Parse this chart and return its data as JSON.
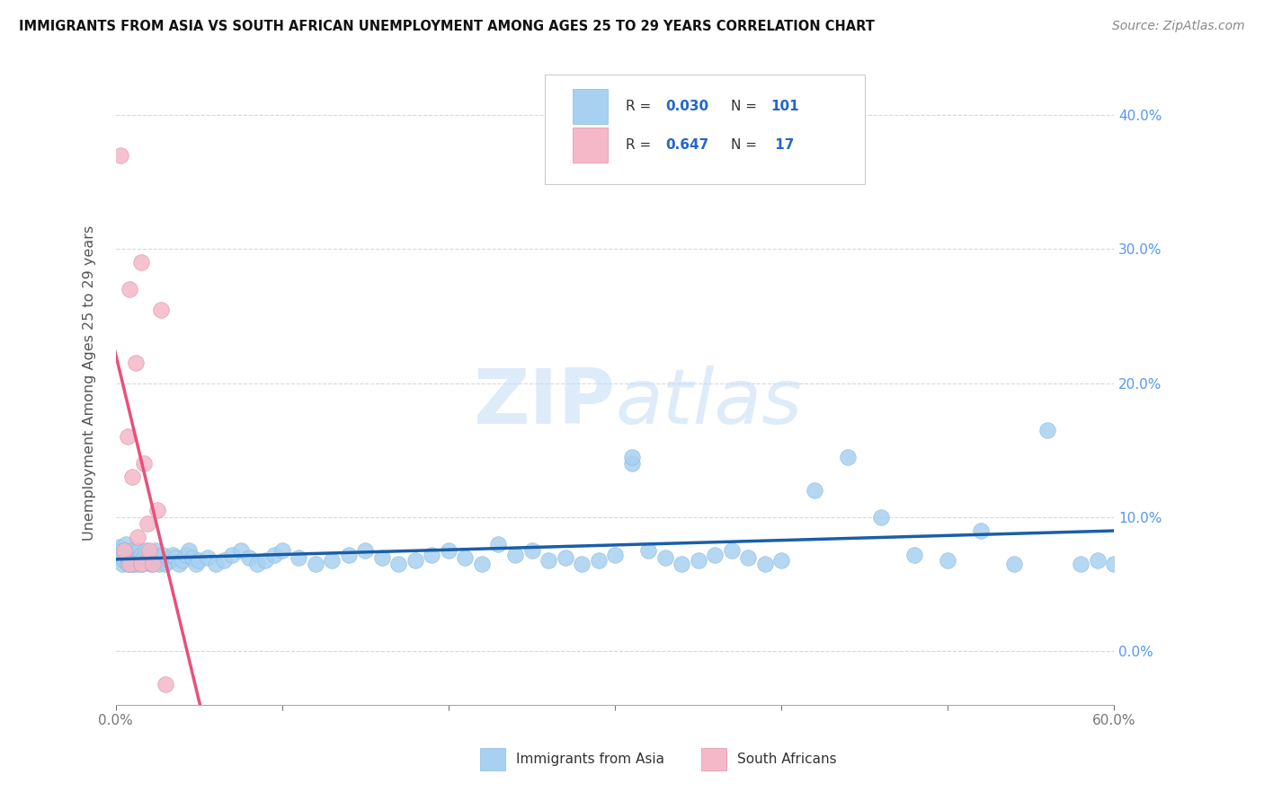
{
  "title": "IMMIGRANTS FROM ASIA VS SOUTH AFRICAN UNEMPLOYMENT AMONG AGES 25 TO 29 YEARS CORRELATION CHART",
  "source": "Source: ZipAtlas.com",
  "ylabel": "Unemployment Among Ages 25 to 29 years",
  "watermark": "ZIPatlas",
  "legend_label1": "Immigrants from Asia",
  "legend_label2": "South Africans",
  "R1": "0.030",
  "N1": "101",
  "R2": "0.647",
  "N2": "17",
  "color_blue": "#A8D0F0",
  "color_pink": "#F5B8C8",
  "color_trend_blue": "#1A5EA8",
  "color_trend_pink": "#E8507A",
  "color_trend_pink_dash": "#F0A0B8",
  "xlim": [
    0.0,
    0.6
  ],
  "ylim": [
    -0.04,
    0.44
  ],
  "yticks_right": [
    0.0,
    0.1,
    0.2,
    0.3,
    0.4
  ],
  "grid_color": "#C8C8C8",
  "background_color": "#FFFFFF",
  "blue_x": [
    0.001,
    0.002,
    0.003,
    0.004,
    0.005,
    0.005,
    0.006,
    0.006,
    0.007,
    0.007,
    0.008,
    0.008,
    0.009,
    0.009,
    0.01,
    0.01,
    0.011,
    0.011,
    0.012,
    0.012,
    0.013,
    0.013,
    0.014,
    0.015,
    0.015,
    0.016,
    0.017,
    0.018,
    0.019,
    0.02,
    0.021,
    0.022,
    0.023,
    0.024,
    0.025,
    0.026,
    0.027,
    0.028,
    0.03,
    0.032,
    0.034,
    0.036,
    0.038,
    0.04,
    0.042,
    0.044,
    0.046,
    0.048,
    0.05,
    0.055,
    0.06,
    0.065,
    0.07,
    0.075,
    0.08,
    0.085,
    0.09,
    0.095,
    0.1,
    0.11,
    0.12,
    0.13,
    0.14,
    0.15,
    0.16,
    0.17,
    0.18,
    0.19,
    0.2,
    0.21,
    0.22,
    0.23,
    0.24,
    0.25,
    0.26,
    0.27,
    0.28,
    0.29,
    0.3,
    0.31,
    0.32,
    0.33,
    0.34,
    0.35,
    0.36,
    0.37,
    0.38,
    0.39,
    0.4,
    0.42,
    0.44,
    0.46,
    0.48,
    0.5,
    0.52,
    0.54,
    0.56,
    0.58,
    0.59,
    0.6,
    0.31
  ],
  "blue_y": [
    0.075,
    0.078,
    0.07,
    0.065,
    0.072,
    0.068,
    0.075,
    0.08,
    0.065,
    0.07,
    0.068,
    0.072,
    0.075,
    0.065,
    0.07,
    0.068,
    0.072,
    0.065,
    0.07,
    0.068,
    0.075,
    0.065,
    0.07,
    0.072,
    0.068,
    0.065,
    0.07,
    0.075,
    0.068,
    0.072,
    0.065,
    0.068,
    0.072,
    0.075,
    0.07,
    0.065,
    0.068,
    0.072,
    0.065,
    0.068,
    0.072,
    0.07,
    0.065,
    0.068,
    0.072,
    0.075,
    0.07,
    0.065,
    0.068,
    0.07,
    0.065,
    0.068,
    0.072,
    0.075,
    0.07,
    0.065,
    0.068,
    0.072,
    0.075,
    0.07,
    0.065,
    0.068,
    0.072,
    0.075,
    0.07,
    0.065,
    0.068,
    0.072,
    0.075,
    0.07,
    0.065,
    0.08,
    0.072,
    0.075,
    0.068,
    0.07,
    0.065,
    0.068,
    0.072,
    0.14,
    0.075,
    0.07,
    0.065,
    0.068,
    0.072,
    0.075,
    0.07,
    0.065,
    0.068,
    0.12,
    0.145,
    0.1,
    0.072,
    0.068,
    0.09,
    0.065,
    0.165,
    0.065,
    0.068,
    0.065,
    0.145
  ],
  "pink_x": [
    0.003,
    0.005,
    0.007,
    0.008,
    0.008,
    0.01,
    0.012,
    0.013,
    0.015,
    0.015,
    0.017,
    0.019,
    0.02,
    0.022,
    0.025,
    0.027,
    0.03
  ],
  "pink_y": [
    0.37,
    0.075,
    0.16,
    0.27,
    0.065,
    0.13,
    0.215,
    0.085,
    0.29,
    0.065,
    0.14,
    0.095,
    0.075,
    0.065,
    0.105,
    0.255,
    -0.025
  ]
}
